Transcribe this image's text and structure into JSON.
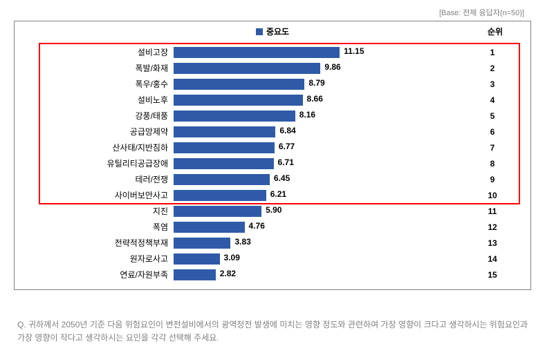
{
  "base_note": "[Base: 전체 응답자(n=50)]",
  "legend_label": "중요도",
  "rank_header": "순위",
  "bar_color": "#2e5aa8",
  "legend_marker_color": "#2e5aa8",
  "max_value": 13,
  "bar_area_width": 280,
  "highlight_border_color": "#ff0000",
  "rows": [
    {
      "label": "설비고장",
      "value": "11.15",
      "rank": "1",
      "num": 11.15
    },
    {
      "label": "폭발/화재",
      "value": "9.86",
      "rank": "2",
      "num": 9.86
    },
    {
      "label": "폭우/홍수",
      "value": "8.79",
      "rank": "3",
      "num": 8.79
    },
    {
      "label": "설비노후",
      "value": "8.66",
      "rank": "4",
      "num": 8.66
    },
    {
      "label": "강풍/태풍",
      "value": "8.16",
      "rank": "5",
      "num": 8.16
    },
    {
      "label": "공급망제약",
      "value": "6.84",
      "rank": "6",
      "num": 6.84
    },
    {
      "label": "산사태/지반침하",
      "value": "6.77",
      "rank": "7",
      "num": 6.77
    },
    {
      "label": "유틸리티공급장애",
      "value": "6.71",
      "rank": "8",
      "num": 6.71
    },
    {
      "label": "테러/전쟁",
      "value": "6.45",
      "rank": "9",
      "num": 6.45
    },
    {
      "label": "사이버보안사고",
      "value": "6.21",
      "rank": "10",
      "num": 6.21
    },
    {
      "label": "지진",
      "value": "5.90",
      "rank": "11",
      "num": 5.9
    },
    {
      "label": "폭염",
      "value": "4.76",
      "rank": "12",
      "num": 4.76
    },
    {
      "label": "전략적정책부재",
      "value": "3.83",
      "rank": "13",
      "num": 3.83
    },
    {
      "label": "원자로사고",
      "value": "3.09",
      "rank": "14",
      "num": 3.09
    },
    {
      "label": "연료/자원부족",
      "value": "2.82",
      "rank": "15",
      "num": 2.82
    }
  ],
  "highlight": {
    "from": 0,
    "to": 9
  },
  "question": "Q. 귀하께서 2050년 기준 다음 위험요인이 변전설비에서의 광역정전 발생에 미치는 영향 정도와 관련하여 가장 영향이 크다고 생각하시는 위험요인과 가장 영향이 작다고 생각하시는 요인을 각각 선택해 주세요."
}
